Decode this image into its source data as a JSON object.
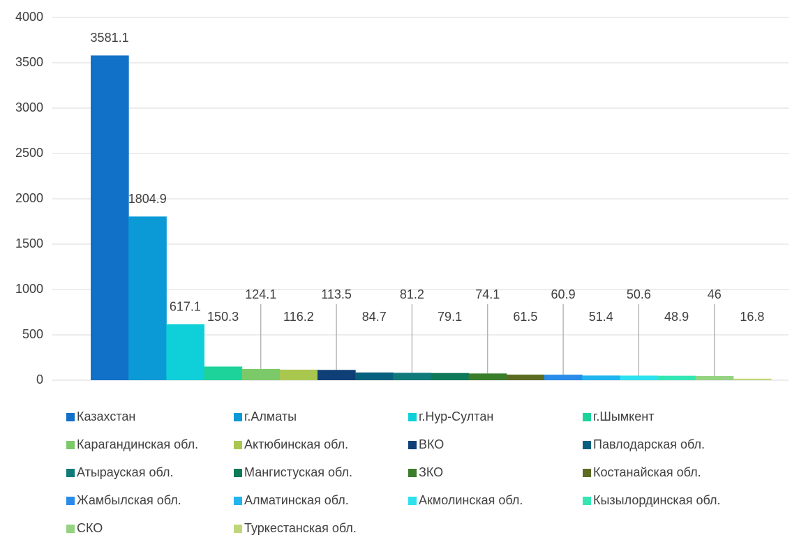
{
  "chart_data": {
    "type": "bar",
    "categories": [
      null
    ],
    "series": [
      {
        "name": "Казахстан",
        "color": "#1170c8",
        "values": [
          3581.1
        ]
      },
      {
        "name": "г.Алматы",
        "color": "#0b9ad6",
        "values": [
          1804.9
        ]
      },
      {
        "name": "г.Нур-Султан",
        "color": "#0fcfd8",
        "values": [
          617.1
        ]
      },
      {
        "name": "г.Шымкент",
        "color": "#1dd39a",
        "values": [
          150.3
        ]
      },
      {
        "name": "Карагандинская обл.",
        "color": "#7cc96a",
        "values": [
          124.1
        ]
      },
      {
        "name": "Актюбинская обл.",
        "color": "#a9c74f",
        "values": [
          116.2
        ]
      },
      {
        "name": "ВКО",
        "color": "#0e3f77",
        "values": [
          113.5
        ]
      },
      {
        "name": "Павлодарская обл.",
        "color": "#06607e",
        "values": [
          84.7
        ]
      },
      {
        "name": "Атырауская обл.",
        "color": "#107a7a",
        "values": [
          81.2
        ]
      },
      {
        "name": "Мангистуская обл.",
        "color": "#0f7a5a",
        "values": [
          79.1
        ]
      },
      {
        "name": "ЗКО",
        "color": "#3a7d2a",
        "values": [
          74.1
        ]
      },
      {
        "name": "Костанайская обл.",
        "color": "#5c6b22",
        "values": [
          61.5
        ]
      },
      {
        "name": "Жамбылская обл.",
        "color": "#2a8ce8",
        "values": [
          60.9
        ]
      },
      {
        "name": "Алматинская обл.",
        "color": "#21b4ef",
        "values": [
          51.4
        ]
      },
      {
        "name": "Акмолинская обл.",
        "color": "#2de1ef",
        "values": [
          50.6
        ]
      },
      {
        "name": "Кызылординская обл.",
        "color": "#33e6b4",
        "values": [
          48.9
        ]
      },
      {
        "name": "СКО",
        "color": "#95d382",
        "values": [
          46
        ]
      },
      {
        "name": "Туркестанская обл.",
        "color": "#bfd77a",
        "values": [
          16.8
        ]
      }
    ],
    "ylim": [
      0,
      4000
    ],
    "yticks": [
      0,
      500,
      1000,
      1500,
      2000,
      2500,
      3000,
      3500,
      4000
    ],
    "grid": true,
    "legend": "bottom"
  }
}
